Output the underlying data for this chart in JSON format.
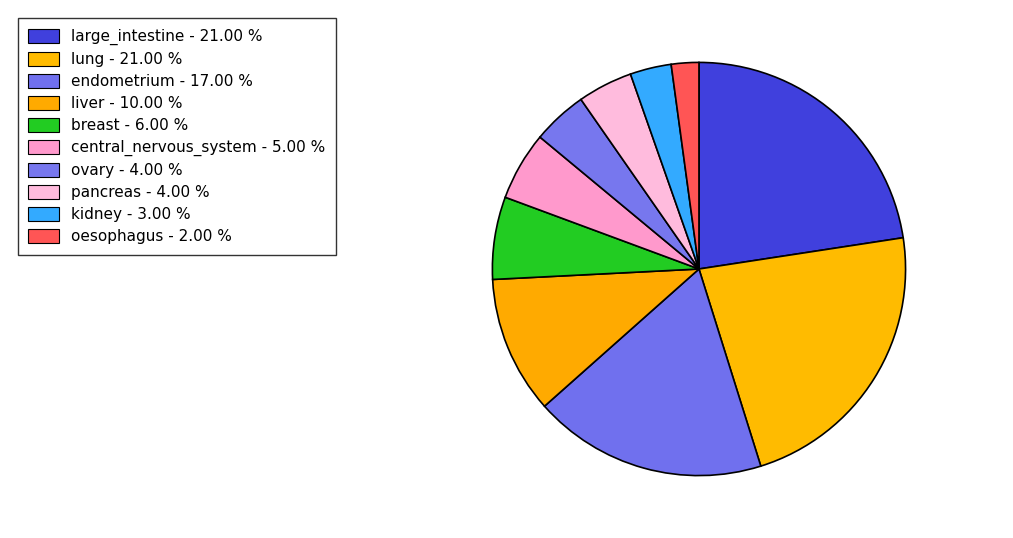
{
  "labels": [
    "large_intestine",
    "lung",
    "endometrium",
    "liver",
    "breast",
    "central_nervous_system",
    "ovary",
    "pancreas",
    "kidney",
    "oesophagus"
  ],
  "values": [
    21,
    21,
    17,
    10,
    6,
    5,
    4,
    4,
    3,
    2
  ],
  "colors": [
    "#4040dd",
    "#ffbb00",
    "#7070ee",
    "#ffaa00",
    "#22cc22",
    "#ff99cc",
    "#7777ee",
    "#ffbbdd",
    "#33aaff",
    "#ff5555"
  ],
  "legend_labels": [
    "large_intestine - 21.00 %",
    "lung - 21.00 %",
    "endometrium - 17.00 %",
    "liver - 10.00 %",
    "breast - 6.00 %",
    "central_nervous_system - 5.00 %",
    "ovary - 4.00 %",
    "pancreas - 4.00 %",
    "kidney - 3.00 %",
    "oesophagus - 2.00 %"
  ],
  "legend_colors": [
    "#4040dd",
    "#ffbb00",
    "#7070ee",
    "#ffaa00",
    "#22cc22",
    "#ff99cc",
    "#7777ee",
    "#ffbbdd",
    "#33aaff",
    "#ff5555"
  ],
  "startangle": 90,
  "figsize": [
    10.13,
    5.38
  ],
  "dpi": 100
}
